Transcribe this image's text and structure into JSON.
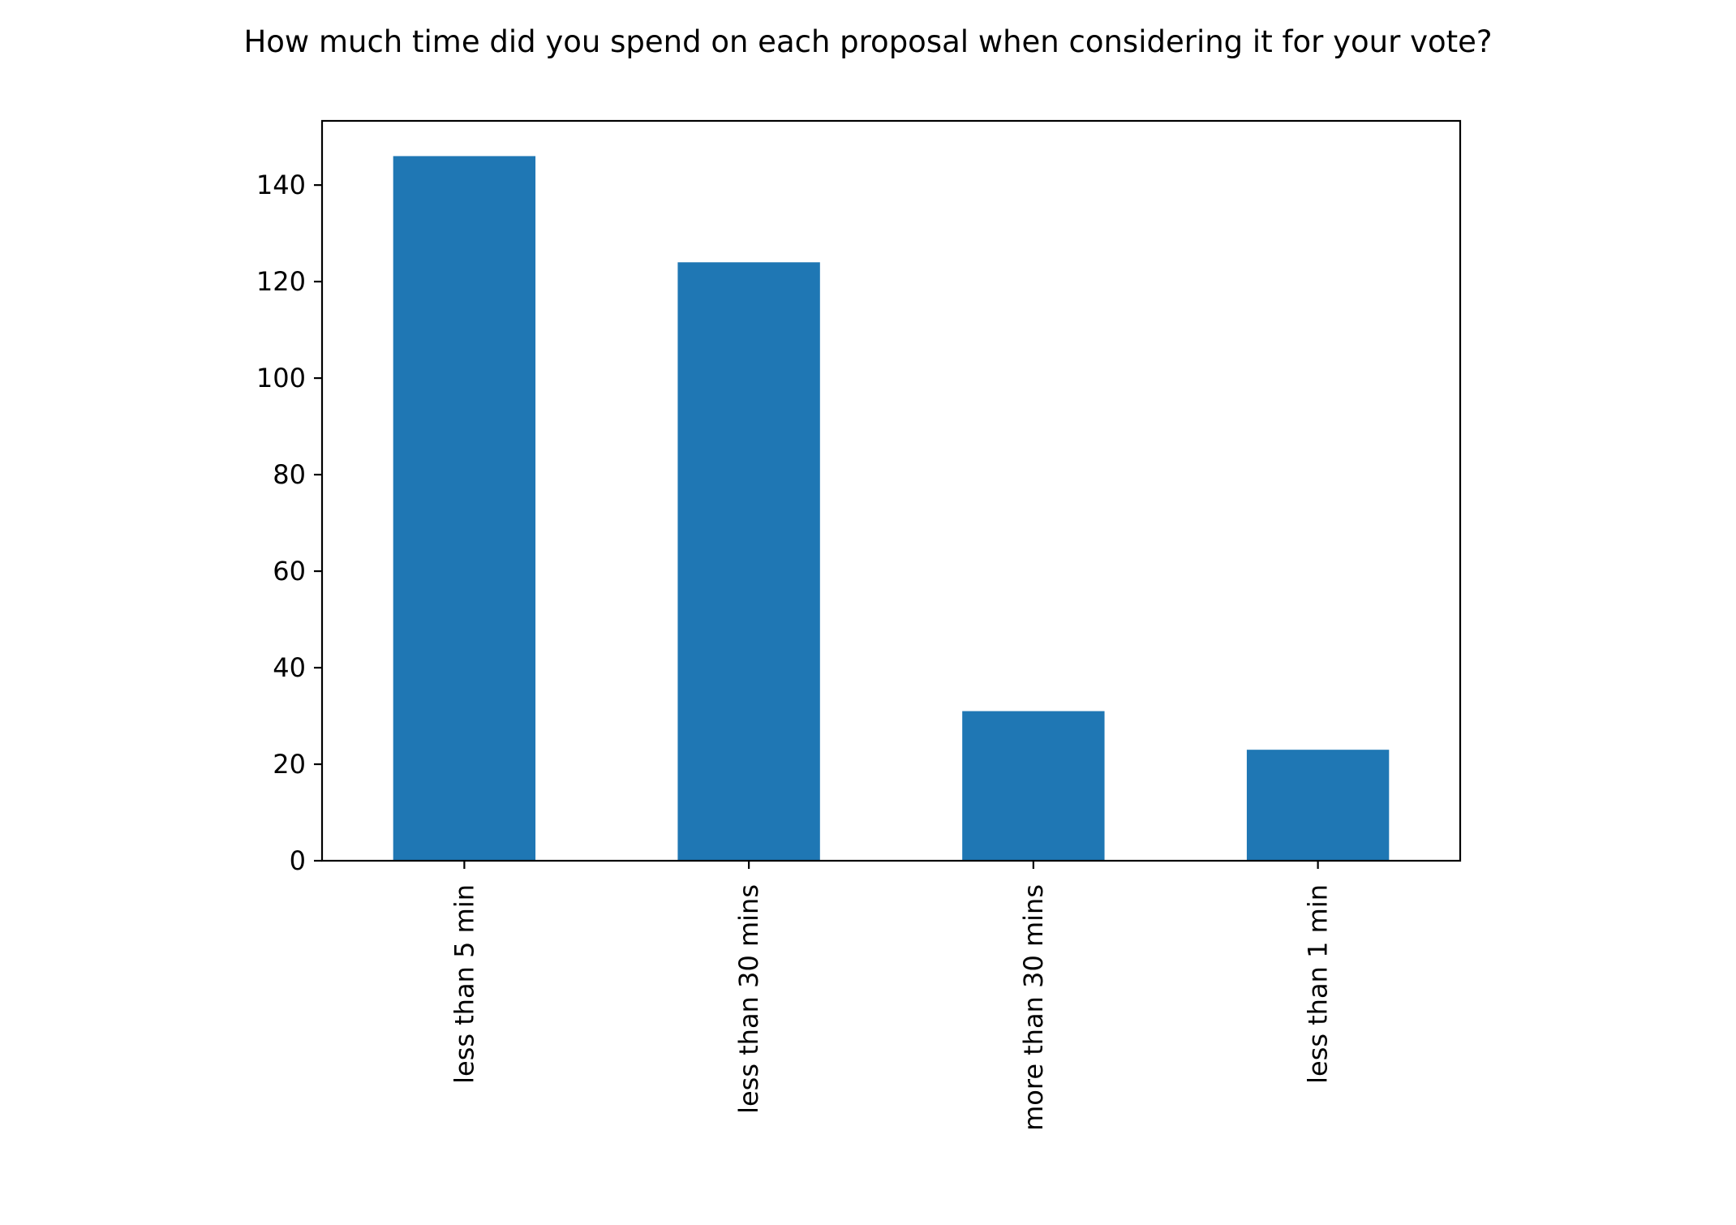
{
  "chart_data": {
    "type": "bar",
    "title": "How much time did you spend on each proposal when considering it for your vote?",
    "xlabel": "",
    "ylabel": "",
    "categories": [
      "less than 5 min",
      "less than 30 mins",
      "more than 30 mins",
      "less than 1 min"
    ],
    "values": [
      146,
      124,
      31,
      23
    ],
    "ylim": [
      0,
      153.3
    ],
    "yticks": [
      0,
      20,
      40,
      60,
      80,
      100,
      120,
      140
    ],
    "xtick_rotation": "vertical",
    "bar_color": "#1f77b4",
    "grid": false,
    "legend": "none"
  }
}
